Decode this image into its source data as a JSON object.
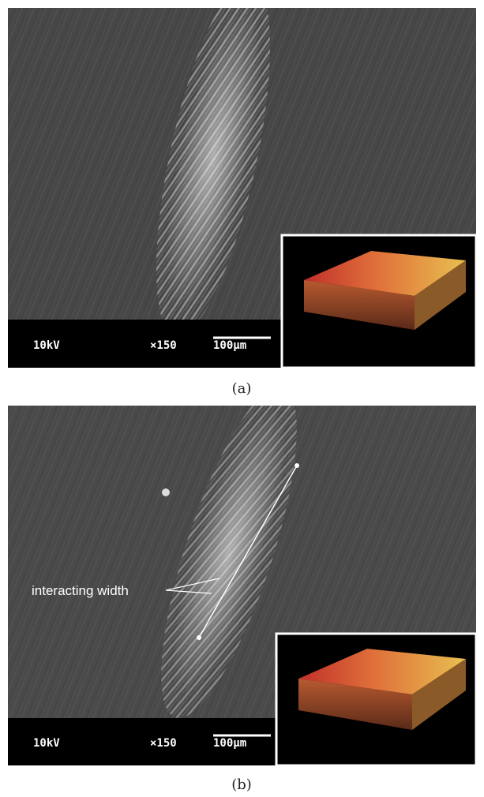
{
  "panels": [
    {
      "caption": "(a)",
      "voltage": "10kV",
      "magnification": "×150",
      "scale_length": "100μm"
    },
    {
      "caption": "(b)",
      "voltage": "10kV",
      "magnification": "×150",
      "scale_length": "100μm",
      "annotation": "interacting width"
    }
  ]
}
